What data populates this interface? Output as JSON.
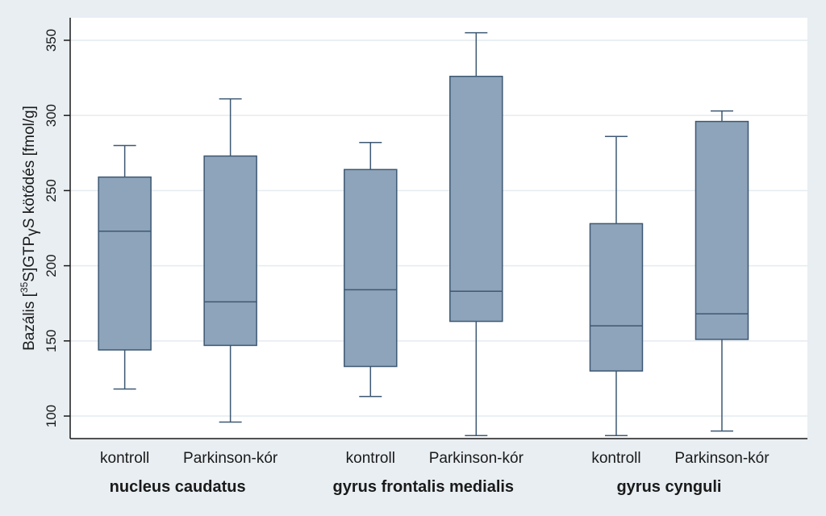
{
  "chart_data": {
    "type": "boxplot",
    "ylabel": {
      "prefix": "Bazális [",
      "superscript": "35",
      "mid": "S]GTP",
      "greek": "γ",
      "suffix": "S kötődés [fmol/g]"
    },
    "ylim": [
      85,
      365
    ],
    "yticks": [
      100,
      150,
      200,
      250,
      300,
      350
    ],
    "grid": true,
    "colors": {
      "box_fill": "#8ea4ba",
      "box_stroke": "#3d5873",
      "grid": "#e4ebf0",
      "plot_bg": "#ffffff",
      "page_bg": "#e8eef2"
    },
    "groups": [
      {
        "name": "nucleus caudatus",
        "boxes": [
          {
            "label": "kontroll",
            "whisker_low": 118,
            "q1": 144,
            "median": 223,
            "q3": 259,
            "whisker_high": 280
          },
          {
            "label": "Parkinson-kór",
            "whisker_low": 96,
            "q1": 147,
            "median": 176,
            "q3": 273,
            "whisker_high": 311
          }
        ]
      },
      {
        "name": "gyrus frontalis medialis",
        "boxes": [
          {
            "label": "kontroll",
            "whisker_low": 113,
            "q1": 133,
            "median": 184,
            "q3": 264,
            "whisker_high": 282
          },
          {
            "label": "Parkinson-kór",
            "whisker_low": 87,
            "q1": 163,
            "median": 183,
            "q3": 326,
            "whisker_high": 355
          }
        ]
      },
      {
        "name": "gyrus cynguli",
        "boxes": [
          {
            "label": "kontroll",
            "whisker_low": 87,
            "q1": 130,
            "median": 160,
            "q3": 228,
            "whisker_high": 286
          },
          {
            "label": "Parkinson-kór",
            "whisker_low": 90,
            "q1": 151,
            "median": 168,
            "q3": 296,
            "whisker_high": 303
          }
        ]
      }
    ]
  }
}
